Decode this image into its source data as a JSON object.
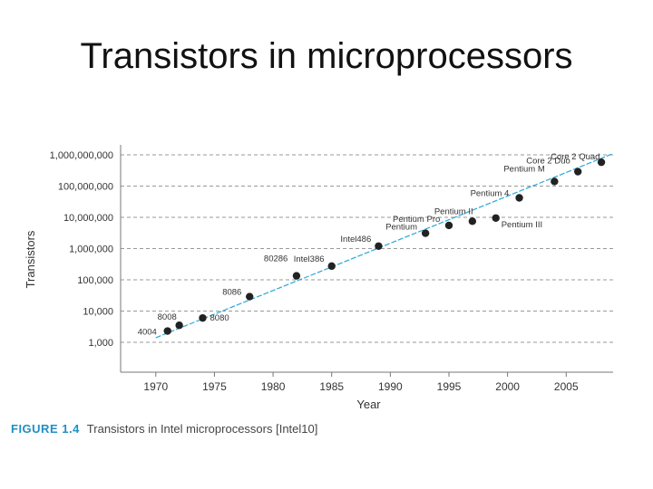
{
  "slide": {
    "title": "Transistors in microprocessors"
  },
  "caption": {
    "figure_label": "FIGURE 1.4",
    "text": "Transistors in Intel microprocessors [Intel10]"
  },
  "colors": {
    "trend_line": "#2aa7d6",
    "point": "#222222",
    "grid": "#9a9a9a",
    "figure_label": "#1f8fc4"
  },
  "chart_data": {
    "type": "scatter",
    "title": "",
    "xlabel": "Year",
    "ylabel": "Transistors",
    "yscale": "log",
    "xlim": [
      1967,
      2009
    ],
    "ylim": [
      1000,
      1000000000
    ],
    "x_ticks": [
      1970,
      1975,
      1980,
      1985,
      1990,
      1995,
      2000,
      2005
    ],
    "y_ticks": [
      {
        "value": 1000,
        "label": "1,000"
      },
      {
        "value": 10000,
        "label": "10,000"
      },
      {
        "value": 100000,
        "label": "100,000"
      },
      {
        "value": 1000000,
        "label": "1,000,000"
      },
      {
        "value": 10000000,
        "label": "10,000,000"
      },
      {
        "value": 100000000,
        "label": "100,000,000"
      },
      {
        "value": 1000000000,
        "label": "1,000,000,000"
      }
    ],
    "grid": "horizontal-dashed",
    "trend_line": {
      "x": [
        1970,
        2009
      ],
      "y": [
        1400,
        1100000000
      ]
    },
    "points": [
      {
        "label": "4004",
        "x": 1971,
        "y": 2300
      },
      {
        "label": "8008",
        "x": 1972,
        "y": 3500
      },
      {
        "label": "8080",
        "x": 1974,
        "y": 6000
      },
      {
        "label": "8086",
        "x": 1978,
        "y": 29000
      },
      {
        "label": "80286",
        "x": 1982,
        "y": 134000
      },
      {
        "label": "Intel386",
        "x": 1985,
        "y": 275000
      },
      {
        "label": "Intel486",
        "x": 1989,
        "y": 1200000
      },
      {
        "label": "Pentium",
        "x": 1993,
        "y": 3100000
      },
      {
        "label": "Pentium Pro",
        "x": 1995,
        "y": 5500000
      },
      {
        "label": "Pentium II",
        "x": 1997,
        "y": 7500000
      },
      {
        "label": "Pentium III",
        "x": 1999,
        "y": 9500000
      },
      {
        "label": "Pentium 4",
        "x": 2001,
        "y": 42000000
      },
      {
        "label": "Pentium M",
        "x": 2004,
        "y": 140000000
      },
      {
        "label": "Core 2 Duo",
        "x": 2006,
        "y": 290000000
      },
      {
        "label": "Core 2 Quad",
        "x": 2008,
        "y": 580000000
      }
    ]
  }
}
